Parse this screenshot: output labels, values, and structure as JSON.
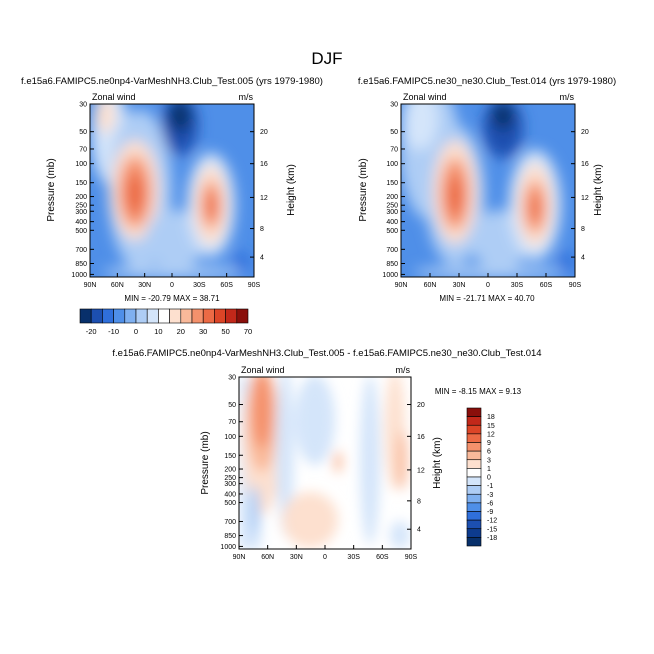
{
  "figure_title": "DJF",
  "chart_data": [
    {
      "type": "heatmap",
      "title": "f.e15a6.FAMIPC5.ne0np4-VarMeshNH3.Club_Test.005 (yrs 1979-1980)",
      "left_string": "Zonal wind",
      "right_string": "m/s",
      "ylabel": "Pressure (mb)",
      "ylabel_right": "Height (km)",
      "x_ticks": [
        "90N",
        "60N",
        "30N",
        "0",
        "30S",
        "60S",
        "90S"
      ],
      "y_ticks": [
        "30",
        "50",
        "70",
        "100",
        "150",
        "200",
        "250",
        "300",
        "400",
        "500",
        "700",
        "850",
        "1000"
      ],
      "y_ticks_right": [
        "20",
        "16",
        "12",
        "8",
        "4"
      ],
      "min_max_text": "MIN = -20.79  MAX = 38.71",
      "min": -20.79,
      "max": 38.71
    },
    {
      "type": "heatmap",
      "title": "f.e15a6.FAMIPC5.ne30_ne30.Club_Test.014 (yrs 1979-1980)",
      "left_string": "Zonal wind",
      "right_string": "m/s",
      "ylabel": "Pressure (mb)",
      "ylabel_right": "Height (km)",
      "x_ticks": [
        "90N",
        "60N",
        "30N",
        "0",
        "30S",
        "60S",
        "90S"
      ],
      "y_ticks": [
        "30",
        "50",
        "70",
        "100",
        "150",
        "200",
        "250",
        "300",
        "400",
        "500",
        "700",
        "850",
        "1000"
      ],
      "y_ticks_right": [
        "20",
        "16",
        "12",
        "8",
        "4"
      ],
      "min_max_text": "MIN = -21.71  MAX = 40.70",
      "min": -21.71,
      "max": 40.7
    },
    {
      "type": "heatmap",
      "title": "f.e15a6.FAMIPC5.ne0np4-VarMeshNH3.Club_Test.005 - f.e15a6.FAMIPC5.ne30_ne30.Club_Test.014",
      "left_string": "Zonal wind",
      "right_string": "m/s",
      "ylabel": "Pressure (mb)",
      "ylabel_right": "Height (km)",
      "x_ticks": [
        "90N",
        "60N",
        "30N",
        "0",
        "30S",
        "60S",
        "90S"
      ],
      "y_ticks": [
        "30",
        "50",
        "70",
        "100",
        "150",
        "200",
        "250",
        "300",
        "400",
        "500",
        "700",
        "850",
        "1000"
      ],
      "y_ticks_right": [
        "20",
        "16",
        "12",
        "8",
        "4"
      ],
      "min_max_text": "MIN = -8.15  MAX =  9.13",
      "min": -8.15,
      "max": 9.13
    }
  ],
  "colorbar_top": {
    "levels": [
      "-20",
      "-10",
      "0",
      "10",
      "20",
      "30",
      "50",
      "70"
    ],
    "colors": [
      "#08306b",
      "#1c4fb0",
      "#2f6fdb",
      "#4f8fe8",
      "#7fb0f0",
      "#aecdf5",
      "#d4e5fa",
      "#ffffff",
      "#fde0cf",
      "#f9b99a",
      "#f4916c",
      "#ec6a45",
      "#dc4527",
      "#c2281a",
      "#8a0f0b"
    ]
  },
  "colorbar_diff": {
    "levels": [
      "18",
      "15",
      "12",
      "9",
      "6",
      "3",
      "1",
      "0",
      "-1",
      "-3",
      "-6",
      "-9",
      "-12",
      "-15",
      "-18"
    ],
    "colors": [
      "#8a0f0b",
      "#c2281a",
      "#dc4527",
      "#ec6a45",
      "#f4916c",
      "#f9b99a",
      "#fde0cf",
      "#ffffff",
      "#d4e5fa",
      "#aecdf5",
      "#7fb0f0",
      "#4f8fe8",
      "#2f6fdb",
      "#1c4fb0",
      "#0d3b8e",
      "#08306b"
    ]
  }
}
